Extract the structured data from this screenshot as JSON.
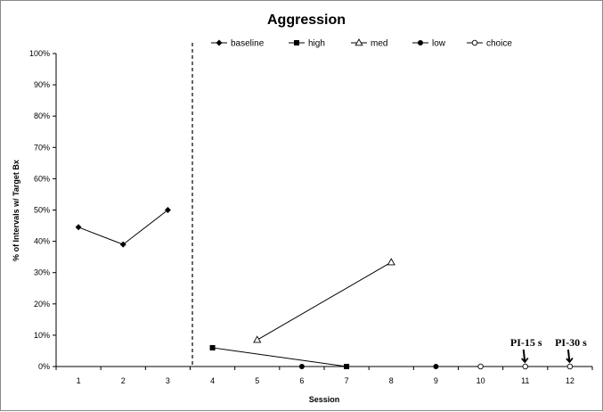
{
  "chart_data": {
    "type": "line",
    "title": "Aggression",
    "xlabel": "Session",
    "ylabel": "% of Intervals w/ Target Bx",
    "x_categories": [
      "1",
      "2",
      "3",
      "4",
      "5",
      "6",
      "7",
      "8",
      "9",
      "10",
      "11",
      "12"
    ],
    "xlim": [
      0.5,
      12.5
    ],
    "ylim": [
      0,
      100
    ],
    "yticks": [
      "0%",
      "10%",
      "20%",
      "30%",
      "40%",
      "50%",
      "60%",
      "70%",
      "80%",
      "90%",
      "100%"
    ],
    "ytick_values": [
      0,
      10,
      20,
      30,
      40,
      50,
      60,
      70,
      80,
      90,
      100
    ],
    "grid": false,
    "legend_position": "top",
    "phase_line_x": 3.55,
    "series": [
      {
        "name": "baseline",
        "marker": "diamond-filled",
        "points": [
          {
            "x": 1,
            "y": 44.5
          },
          {
            "x": 2,
            "y": 39
          },
          {
            "x": 3,
            "y": 50
          }
        ]
      },
      {
        "name": "high",
        "marker": "square-filled",
        "points": [
          {
            "x": 4,
            "y": 6
          },
          {
            "x": 7,
            "y": 0
          }
        ]
      },
      {
        "name": "med",
        "marker": "triangle-open",
        "points": [
          {
            "x": 5,
            "y": 8.5
          },
          {
            "x": 8,
            "y": 33.3
          }
        ]
      },
      {
        "name": "low",
        "marker": "circle-filled",
        "points": [
          {
            "x": 6,
            "y": 0
          },
          {
            "x": 9,
            "y": 0
          }
        ]
      },
      {
        "name": "choice",
        "marker": "circle-open",
        "points": [
          {
            "x": 10,
            "y": 0
          },
          {
            "x": 11,
            "y": 0
          },
          {
            "x": 12,
            "y": 0
          }
        ]
      }
    ],
    "annotations": [
      {
        "text": "PI-15 s",
        "x": 11,
        "y": 0
      },
      {
        "text": "PI-30 s",
        "x": 12,
        "y": 0
      }
    ]
  }
}
